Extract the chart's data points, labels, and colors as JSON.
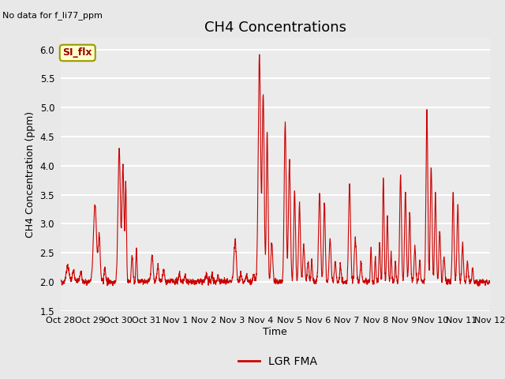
{
  "title": "CH4 Concentrations",
  "xlabel": "Time",
  "ylabel": "CH4 Concentration (ppm)",
  "top_left_text": "No data for f_li77_ppm",
  "legend_label": "LGR FMA",
  "legend_box_label": "SI_flx",
  "ylim": [
    1.5,
    6.2
  ],
  "yticks": [
    1.5,
    2.0,
    2.5,
    3.0,
    3.5,
    4.0,
    4.5,
    5.0,
    5.5,
    6.0
  ],
  "line_color": "#cc0000",
  "legend_box_bg": "#ffffcc",
  "legend_box_border": "#999900",
  "legend_box_text_color": "#990000",
  "fig_bg": "#e8e8e8",
  "plot_bg": "#ebebeb",
  "title_fontsize": 13,
  "label_fontsize": 9,
  "tick_fontsize": 8.5
}
